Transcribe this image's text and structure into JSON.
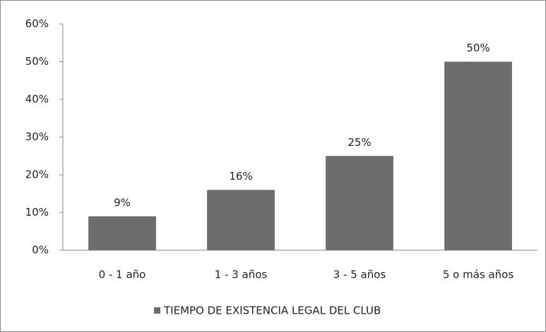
{
  "chart_data": {
    "type": "bar",
    "categories": [
      "0 - 1 año",
      "1 - 3 años",
      "3 - 5 años",
      "5 o más años"
    ],
    "series": [
      {
        "name": "TIEMPO DE EXISTENCIA LEGAL DEL CLUB",
        "color": "#6d6d6d",
        "values": [
          9,
          16,
          25,
          50
        ],
        "value_labels": [
          "9%",
          "16%",
          "25%",
          "50%"
        ]
      }
    ],
    "ylim": [
      0,
      60
    ],
    "yticks": [
      {
        "value": 0,
        "label": "0%"
      },
      {
        "value": 10,
        "label": "10%"
      },
      {
        "value": 20,
        "label": "20%"
      },
      {
        "value": 30,
        "label": "30%"
      },
      {
        "value": 40,
        "label": "40%"
      },
      {
        "value": 50,
        "label": "50%"
      },
      {
        "value": 60,
        "label": "60%"
      }
    ],
    "grid": false,
    "legend": "bottom"
  }
}
